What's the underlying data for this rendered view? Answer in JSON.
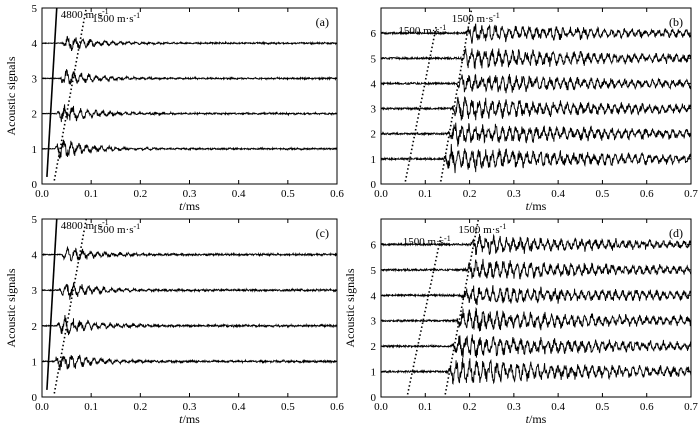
{
  "chart_data": [
    {
      "type": "line",
      "panel_label": "(a)",
      "xlabel_italic": "t",
      "xlabel_unit": "/ms",
      "ylabel": "Acoustic signals",
      "xlim": [
        0,
        0.6
      ],
      "ylim": [
        0,
        5
      ],
      "xticks": [
        "0.0",
        "0.1",
        "0.2",
        "0.3",
        "0.4",
        "0.5",
        "0.6"
      ],
      "yticks": [
        "0",
        "1",
        "2",
        "3",
        "4",
        "5"
      ],
      "series": [
        {
          "baseline": 1,
          "arrival_ms": 0.025,
          "peak_amp": 0.45,
          "decay_ms": 0.06,
          "noise_amp": 0.03
        },
        {
          "baseline": 2,
          "arrival_ms": 0.03,
          "peak_amp": 0.45,
          "decay_ms": 0.06,
          "noise_amp": 0.03
        },
        {
          "baseline": 3,
          "arrival_ms": 0.035,
          "peak_amp": 0.4,
          "decay_ms": 0.06,
          "noise_amp": 0.03
        },
        {
          "baseline": 4,
          "arrival_ms": 0.04,
          "peak_amp": 0.35,
          "decay_ms": 0.06,
          "noise_amp": 0.03
        }
      ],
      "lines": [
        {
          "style": "solid",
          "x": [
            0.01,
            0.03
          ],
          "y": [
            0.2,
            5.0
          ],
          "label": "4800 m·s",
          "sup": "-1"
        },
        {
          "style": "dotted",
          "x": [
            0.025,
            0.09
          ],
          "y": [
            0.1,
            5.0
          ],
          "label": "1500 m·s",
          "sup": "-1"
        }
      ]
    },
    {
      "type": "line",
      "panel_label": "(b)",
      "xlabel_italic": "t",
      "xlabel_unit": "/ms",
      "ylabel": "",
      "xlim": [
        0,
        0.7
      ],
      "ylim": [
        0,
        7
      ],
      "xticks": [
        "0.0",
        "0.1",
        "0.2",
        "0.3",
        "0.4",
        "0.5",
        "0.6",
        "0.7"
      ],
      "yticks": [
        "0",
        "1",
        "2",
        "3",
        "4",
        "5",
        "6"
      ],
      "series": [
        {
          "baseline": 1,
          "arrival_ms": 0.14,
          "peak_amp": 0.55,
          "decay_ms": 0.35,
          "noise_amp": 0.1
        },
        {
          "baseline": 2,
          "arrival_ms": 0.15,
          "peak_amp": 0.5,
          "decay_ms": 0.35,
          "noise_amp": 0.1
        },
        {
          "baseline": 3,
          "arrival_ms": 0.16,
          "peak_amp": 0.5,
          "decay_ms": 0.35,
          "noise_amp": 0.1
        },
        {
          "baseline": 4,
          "arrival_ms": 0.17,
          "peak_amp": 0.45,
          "decay_ms": 0.35,
          "noise_amp": 0.1
        },
        {
          "baseline": 5,
          "arrival_ms": 0.18,
          "peak_amp": 0.45,
          "decay_ms": 0.35,
          "noise_amp": 0.1
        },
        {
          "baseline": 6,
          "arrival_ms": 0.19,
          "peak_amp": 0.4,
          "decay_ms": 0.35,
          "noise_amp": 0.1
        }
      ],
      "lines": [
        {
          "style": "dotted",
          "x": [
            0.055,
            0.125
          ],
          "y": [
            0.1,
            6.3
          ],
          "label": "1500 m·s",
          "sup": "-1"
        },
        {
          "style": "dotted",
          "x": [
            0.135,
            0.205
          ],
          "y": [
            0.1,
            7.0
          ],
          "label": "1500 m·s",
          "sup": "-1"
        }
      ]
    },
    {
      "type": "line",
      "panel_label": "(c)",
      "xlabel_italic": "t",
      "xlabel_unit": "/ms",
      "ylabel": "Acoustic signals",
      "xlim": [
        0,
        0.6
      ],
      "ylim": [
        0,
        5
      ],
      "xticks": [
        "0.0",
        "0.1",
        "0.2",
        "0.3",
        "0.4",
        "0.5",
        "0.6"
      ],
      "yticks": [
        "0",
        "1",
        "2",
        "3",
        "4",
        "5"
      ],
      "series": [
        {
          "baseline": 1,
          "arrival_ms": 0.025,
          "peak_amp": 0.45,
          "decay_ms": 0.06,
          "noise_amp": 0.04
        },
        {
          "baseline": 2,
          "arrival_ms": 0.03,
          "peak_amp": 0.45,
          "decay_ms": 0.06,
          "noise_amp": 0.04
        },
        {
          "baseline": 3,
          "arrival_ms": 0.035,
          "peak_amp": 0.4,
          "decay_ms": 0.06,
          "noise_amp": 0.04
        },
        {
          "baseline": 4,
          "arrival_ms": 0.04,
          "peak_amp": 0.35,
          "decay_ms": 0.06,
          "noise_amp": 0.04
        }
      ],
      "lines": [
        {
          "style": "solid",
          "x": [
            0.01,
            0.03
          ],
          "y": [
            0.2,
            5.0
          ],
          "label": "4800 m·s",
          "sup": "-1"
        },
        {
          "style": "dotted",
          "x": [
            0.025,
            0.09
          ],
          "y": [
            0.1,
            5.0
          ],
          "label": "1500 m·s",
          "sup": "-1"
        }
      ]
    },
    {
      "type": "line",
      "panel_label": "(d)",
      "xlabel_italic": "t",
      "xlabel_unit": "/ms",
      "ylabel": "Acoustic signals",
      "xlim": [
        0,
        0.7
      ],
      "ylim": [
        0,
        7
      ],
      "xticks": [
        "0.0",
        "0.1",
        "0.2",
        "0.3",
        "0.4",
        "0.5",
        "0.6",
        "0.7"
      ],
      "yticks": [
        "0",
        "1",
        "2",
        "3",
        "4",
        "5",
        "6"
      ],
      "series": [
        {
          "baseline": 1,
          "arrival_ms": 0.15,
          "peak_amp": 0.55,
          "decay_ms": 0.35,
          "noise_amp": 0.1
        },
        {
          "baseline": 2,
          "arrival_ms": 0.16,
          "peak_amp": 0.5,
          "decay_ms": 0.35,
          "noise_amp": 0.1
        },
        {
          "baseline": 3,
          "arrival_ms": 0.17,
          "peak_amp": 0.5,
          "decay_ms": 0.35,
          "noise_amp": 0.1
        },
        {
          "baseline": 4,
          "arrival_ms": 0.18,
          "peak_amp": 0.45,
          "decay_ms": 0.35,
          "noise_amp": 0.1
        },
        {
          "baseline": 5,
          "arrival_ms": 0.19,
          "peak_amp": 0.45,
          "decay_ms": 0.35,
          "noise_amp": 0.1
        },
        {
          "baseline": 6,
          "arrival_ms": 0.2,
          "peak_amp": 0.4,
          "decay_ms": 0.35,
          "noise_amp": 0.1
        }
      ],
      "lines": [
        {
          "style": "dotted",
          "x": [
            0.06,
            0.135
          ],
          "y": [
            0.1,
            6.3
          ],
          "label": "1500 m·s",
          "sup": "-1"
        },
        {
          "style": "dotted",
          "x": [
            0.145,
            0.22
          ],
          "y": [
            0.1,
            7.0
          ],
          "label": "1500 m·s",
          "sup": "-1"
        }
      ]
    }
  ]
}
